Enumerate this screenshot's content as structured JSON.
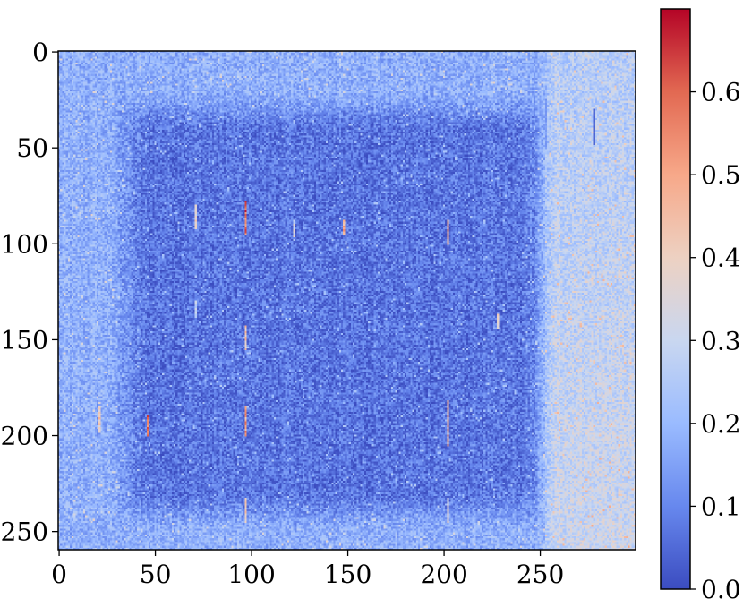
{
  "chart_data": {
    "type": "heatmap",
    "title": "",
    "xlabel": "",
    "ylabel": "",
    "n_cols": 300,
    "n_rows": 260,
    "xlim": [
      0,
      300
    ],
    "ylim": [
      260,
      0
    ],
    "x_ticks": [
      0,
      50,
      100,
      150,
      200,
      250
    ],
    "y_ticks": [
      0,
      50,
      100,
      150,
      200,
      250
    ],
    "x_tick_labels": [
      "0",
      "50",
      "100",
      "150",
      "200",
      "250"
    ],
    "y_tick_labels": [
      "0",
      "50",
      "100",
      "150",
      "200",
      "250"
    ],
    "colormap": "coolwarm",
    "colormap_stops": [
      "#3b4cc0",
      "#6788ee",
      "#9abbff",
      "#c9d7f0",
      "#edd1c2",
      "#f7a889",
      "#e26952",
      "#b40426"
    ],
    "colorbar": {
      "range": [
        0.0,
        0.7
      ],
      "ticks": [
        0.0,
        0.1,
        0.2,
        0.3,
        0.4,
        0.5,
        0.6
      ],
      "tick_labels": [
        "0.0",
        "0.1",
        "0.2",
        "0.3",
        "0.4",
        "0.5",
        "0.6"
      ]
    },
    "description_values": {
      "background_level": 0.18,
      "dark_square_level": 0.07,
      "dark_square_x": [
        35,
        250
      ],
      "dark_square_y": [
        30,
        240
      ],
      "right_band_x_start": 252,
      "right_band_level": 0.26
    },
    "bright_streaks": [
      {
        "x": 21,
        "y": [
          185,
          198
        ],
        "value": 0.45
      },
      {
        "x": 46,
        "y": [
          190,
          200
        ],
        "value": 0.6
      },
      {
        "x": 71,
        "y": [
          80,
          92
        ],
        "value": 0.4
      },
      {
        "x": 71,
        "y": [
          130,
          138
        ],
        "value": 0.3
      },
      {
        "x": 97,
        "y": [
          78,
          95
        ],
        "value": 0.62
      },
      {
        "x": 97,
        "y": [
          143,
          155
        ],
        "value": 0.45
      },
      {
        "x": 97,
        "y": [
          185,
          200
        ],
        "value": 0.55
      },
      {
        "x": 97,
        "y": [
          233,
          245
        ],
        "value": 0.45
      },
      {
        "x": 122,
        "y": [
          88,
          96
        ],
        "value": 0.35
      },
      {
        "x": 148,
        "y": [
          88,
          95
        ],
        "value": 0.55
      },
      {
        "x": 202,
        "y": [
          88,
          100
        ],
        "value": 0.55
      },
      {
        "x": 202,
        "y": [
          182,
          205
        ],
        "value": 0.5
      },
      {
        "x": 202,
        "y": [
          233,
          245
        ],
        "value": 0.4
      },
      {
        "x": 228,
        "y": [
          137,
          144
        ],
        "value": 0.4
      },
      {
        "x": 253,
        "y": [
          25,
          50
        ],
        "value": 0.15
      },
      {
        "x": 278,
        "y": [
          30,
          48
        ],
        "value": 0.05
      }
    ]
  }
}
